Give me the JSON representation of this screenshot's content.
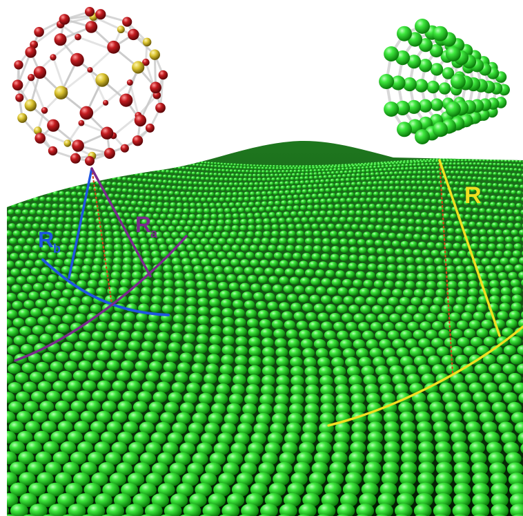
{
  "labels": {
    "rb": {
      "main": "R",
      "sub": "b"
    },
    "ra": {
      "main": "R",
      "sub": "a"
    },
    "r": {
      "main": "R"
    }
  },
  "colors": {
    "background": "#ffffff",
    "sheet_dark": "#0b3b0b",
    "sheet_atom": "#22d022",
    "sheet_highlight": "#9cff9c",
    "fullerene_red": "#b3161b",
    "fullerene_yellow": "#d9c22e",
    "bond_grey": "#c9c9c9",
    "nanotube_green": "#27d127",
    "rb_blue": "#1f56e0",
    "ra_purple": "#7a2a8c",
    "r_yellow": "#f0e020",
    "guide_red_dotted": "#d04a1a"
  },
  "objects": {
    "fullerene": "fullerene-molecule",
    "nanotube": "carbon-nanotube",
    "sheet": "rippled-graphene-sheet"
  }
}
